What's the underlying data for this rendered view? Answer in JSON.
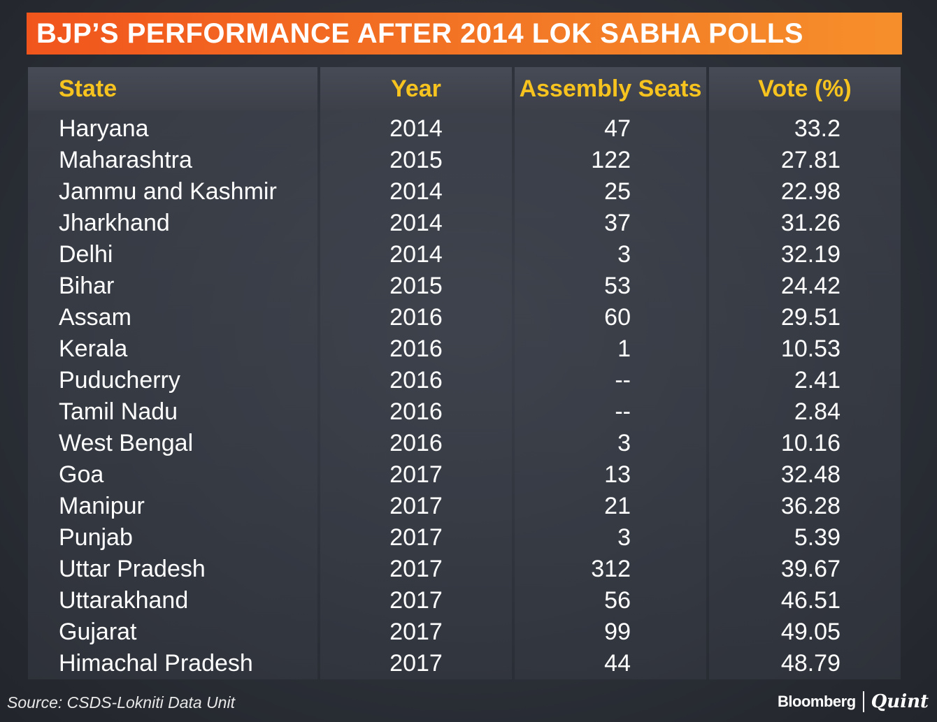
{
  "title": "BJP’S PERFORMANCE AFTER 2014 LOK SABHA POLLS",
  "source": "Source: CSDS-Lokniti Data Unit",
  "brand": {
    "primary": "Bloomberg",
    "secondary": "Quint"
  },
  "colors": {
    "title_bg": "#f37a26",
    "header_text": "#f7c31e",
    "background": "#2c3038",
    "text": "#ffffff"
  },
  "chart_data": {
    "type": "table",
    "title": "BJP’S PERFORMANCE AFTER 2014 LOK SABHA POLLS",
    "columns": [
      "State",
      "Year",
      "Assembly Seats",
      "Vote (%)"
    ],
    "rows": [
      [
        "Haryana",
        "2014",
        "47",
        "33.2"
      ],
      [
        "Maharashtra",
        "2015",
        "122",
        "27.81"
      ],
      [
        "Jammu and Kashmir",
        "2014",
        "25",
        "22.98"
      ],
      [
        "Jharkhand",
        "2014",
        "37",
        "31.26"
      ],
      [
        "Delhi",
        "2014",
        "3",
        "32.19"
      ],
      [
        "Bihar",
        "2015",
        "53",
        "24.42"
      ],
      [
        "Assam",
        "2016",
        "60",
        "29.51"
      ],
      [
        "Kerala",
        "2016",
        "1",
        "10.53"
      ],
      [
        "Puducherry",
        "2016",
        "--",
        "2.41"
      ],
      [
        "Tamil Nadu",
        "2016",
        "--",
        "2.84"
      ],
      [
        "West Bengal",
        "2016",
        "3",
        "10.16"
      ],
      [
        "Goa",
        "2017",
        "13",
        "32.48"
      ],
      [
        "Manipur",
        "2017",
        "21",
        "36.28"
      ],
      [
        "Punjab",
        "2017",
        "3",
        "5.39"
      ],
      [
        "Uttar Pradesh",
        "2017",
        "312",
        "39.67"
      ],
      [
        "Uttarakhand",
        "2017",
        "56",
        "46.51"
      ],
      [
        "Gujarat",
        "2017",
        "99",
        "49.05"
      ],
      [
        "Himachal Pradesh",
        "2017",
        "44",
        "48.79"
      ]
    ]
  }
}
